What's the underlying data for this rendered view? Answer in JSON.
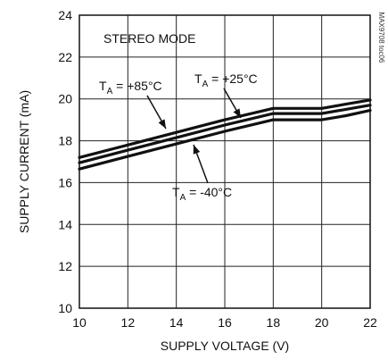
{
  "chart_data": {
    "type": "line",
    "xlabel": "SUPPLY VOLTAGE (V)",
    "ylabel": "SUPPLY CURRENT (mA)",
    "xlim": [
      10,
      22
    ],
    "ylim": [
      10,
      24
    ],
    "xticks": [
      "10",
      "12",
      "14",
      "16",
      "18",
      "20",
      "22"
    ],
    "yticks": [
      "10",
      "12",
      "14",
      "16",
      "18",
      "20",
      "22",
      "24"
    ],
    "grid": true,
    "mode_label": "STEREO MODE",
    "watermark": "MAX9708 toc06",
    "series": [
      {
        "name": "TA = +85°C",
        "x": [
          10,
          12,
          14,
          16,
          18,
          19,
          20,
          21,
          22
        ],
        "y": [
          17.2,
          17.8,
          18.4,
          19.0,
          19.55,
          19.55,
          19.55,
          19.75,
          19.95
        ]
      },
      {
        "name": "TA = +25°C",
        "x": [
          10,
          12,
          14,
          16,
          18,
          19,
          20,
          21,
          22
        ],
        "y": [
          16.95,
          17.55,
          18.15,
          18.75,
          19.3,
          19.3,
          19.3,
          19.5,
          19.7
        ]
      },
      {
        "name": "TA = -40°C",
        "x": [
          10,
          12,
          14,
          16,
          18,
          19,
          20,
          21,
          22
        ],
        "y": [
          16.65,
          17.25,
          17.85,
          18.45,
          19.0,
          19.0,
          19.0,
          19.2,
          19.45
        ]
      }
    ],
    "annotations": [
      {
        "main": "T",
        "sub": "A",
        "rest": " = +85°C"
      },
      {
        "main": "T",
        "sub": "A",
        "rest": " = +25°C"
      },
      {
        "main": "T",
        "sub": "A",
        "rest": " = -40°C"
      }
    ]
  }
}
